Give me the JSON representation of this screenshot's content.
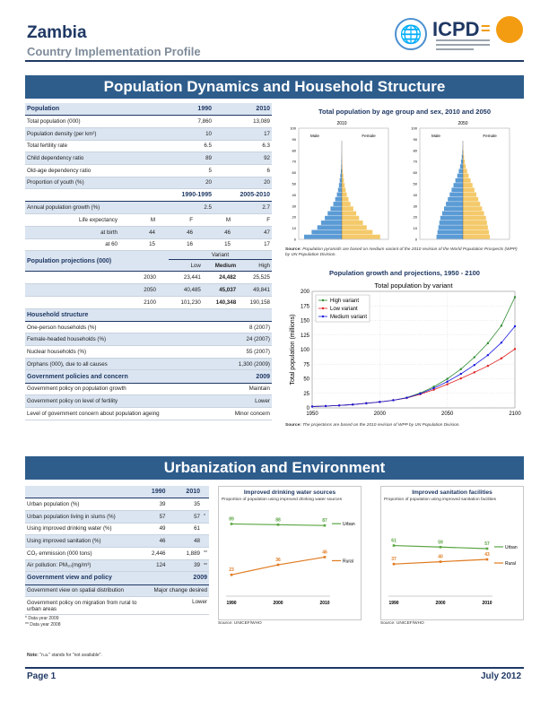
{
  "header": {
    "country": "Zambia",
    "subtitle": "Country Implementation Profile",
    "icpd_logo": "ICPD",
    "logo_eq": "="
  },
  "section1": {
    "title": "Population Dynamics and Household Structure",
    "population": {
      "label": "Population",
      "y1": "1990",
      "y2": "2010",
      "rows": [
        {
          "label": "Total population (000)",
          "v1": "7,860",
          "v2": "13,089"
        },
        {
          "label": "Population density (per km²)",
          "v1": "10",
          "v2": "17"
        },
        {
          "label": "Total fertility rate",
          "v1": "6.5",
          "v2": "6.3"
        },
        {
          "label": "Child dependency ratio",
          "v1": "89",
          "v2": "92"
        },
        {
          "label": "Old-age dependency ratio",
          "v1": "5",
          "v2": "6"
        },
        {
          "label": "Proportion of youth (%)",
          "v1": "20",
          "v2": "20"
        }
      ],
      "period1": "1990-1995",
      "period2": "2005-2010",
      "growth_label": "Annual population growth (%)",
      "growth1": "2.5",
      "growth2": "2.7",
      "le_label": "Life expectancy",
      "le_h": [
        "M",
        "F",
        "M",
        "F"
      ],
      "le_birth_label": "at birth",
      "le_birth": [
        "44",
        "46",
        "46",
        "47"
      ],
      "le_60_label": "at 60",
      "le_60": [
        "15",
        "16",
        "15",
        "17"
      ]
    },
    "projections": {
      "label": "Population projections (000)",
      "variant": "Variant",
      "low": "Low",
      "medium": "Medium",
      "high": "High",
      "rows": [
        {
          "year": "2030",
          "low": "23,441",
          "medium": "24,482",
          "high": "25,525"
        },
        {
          "year": "2050",
          "low": "40,485",
          "medium": "45,037",
          "high": "49,841"
        },
        {
          "year": "2100",
          "low": "101,230",
          "medium": "140,348",
          "high": "190,158"
        }
      ]
    },
    "household": {
      "label": "Household structure",
      "rows": [
        {
          "label": "One-person households (%)",
          "value": "8 (2007)"
        },
        {
          "label": "Female-headed households (%)",
          "value": "24 (2007)"
        },
        {
          "label": "Nuclear households (%)",
          "value": "55 (2007)"
        },
        {
          "label": "Orphans (000), due to all causes",
          "value": "1,300 (2009)"
        }
      ]
    },
    "policies": {
      "label": "Government policies and concern",
      "year": "2009",
      "rows": [
        {
          "label": "Government policy on population growth",
          "value": "Maintain"
        },
        {
          "label": "Government policy on level of fertility",
          "value": "Lower"
        },
        {
          "label": "Level of government concern about population ageing",
          "value": "Minor concern"
        }
      ]
    },
    "pyramid": {
      "title": "Total population by age group and sex, 2010 and 2050",
      "year_left": "2010",
      "year_right": "2050",
      "male": "Male",
      "female": "Female",
      "ticks": [
        "100",
        "90",
        "80",
        "70",
        "60",
        "50",
        "40",
        "30",
        "20",
        "10",
        "0"
      ],
      "source_label": "Source:",
      "source": "Population pyramids are based on medium variant of the 2010 revision of the World Population Prospects (WPP) by UN Population Division."
    },
    "projection_chart": {
      "title": "Population growth and projections, 1950 - 2100",
      "source_label": "Source:",
      "source": "The projections are based on the 2010 revision of WPP by UN Population Division."
    }
  },
  "chart_data": [
    {
      "type": "line",
      "title": "Total population by variant",
      "ylabel": "Total population (millions)",
      "xlim": [
        1950,
        2100
      ],
      "ylim": [
        0,
        200
      ],
      "yticks": [
        0,
        25,
        50,
        75,
        100,
        125,
        150,
        175,
        200
      ],
      "xticks": [
        1950,
        2000,
        2050,
        2100
      ],
      "legend": "top-left",
      "grid": true,
      "series": [
        {
          "name": "High variant",
          "color": "#2e8b2e",
          "x": [
            1950,
            1960,
            1970,
            1980,
            1990,
            2000,
            2010,
            2020,
            2030,
            2040,
            2050,
            2060,
            2070,
            2080,
            2090,
            2100
          ],
          "y": [
            2.4,
            3.1,
            4.2,
            5.7,
            7.9,
            10.2,
            13.1,
            17.6,
            25.5,
            36.4,
            49.8,
            66.5,
            86.9,
            111,
            141,
            190
          ]
        },
        {
          "name": "Low variant",
          "color": "#e02020",
          "x": [
            1950,
            1960,
            1970,
            1980,
            1990,
            2000,
            2010,
            2020,
            2030,
            2040,
            2050,
            2060,
            2070,
            2080,
            2090,
            2100
          ],
          "y": [
            2.4,
            3.1,
            4.2,
            5.7,
            7.9,
            10.2,
            13.1,
            17.0,
            23.4,
            31.2,
            40.5,
            50.5,
            61.0,
            72.0,
            85.0,
            101
          ]
        },
        {
          "name": "Medium variant",
          "color": "#1a1ae0",
          "x": [
            1950,
            1960,
            1970,
            1980,
            1990,
            2000,
            2010,
            2020,
            2030,
            2040,
            2050,
            2060,
            2070,
            2080,
            2090,
            2100
          ],
          "y": [
            2.4,
            3.1,
            4.2,
            5.7,
            7.9,
            10.2,
            13.1,
            17.3,
            24.5,
            33.8,
            45.0,
            58.3,
            73.5,
            90.5,
            112,
            140
          ]
        }
      ]
    },
    {
      "type": "line",
      "title": "Improved drinking water sources",
      "subtitle": "Proportion of population using improved drinking water sources",
      "x": [
        1990,
        2000,
        2010
      ],
      "series": [
        {
          "name": "Urban",
          "color": "#5aa542",
          "values": [
            89,
            88,
            87
          ]
        },
        {
          "name": "Rural",
          "color": "#e07a1f",
          "values": [
            23,
            36,
            46
          ]
        }
      ],
      "source": "Source: UNICEF/WHO"
    },
    {
      "type": "line",
      "title": "Improved sanitation facilities",
      "subtitle": "Proportion of population using improved sanitation facilities",
      "x": [
        1990,
        2000,
        2010
      ],
      "series": [
        {
          "name": "Urban",
          "color": "#5aa542",
          "values": [
            61,
            59,
            57
          ]
        },
        {
          "name": "Rural",
          "color": "#e07a1f",
          "values": [
            37,
            40,
            43
          ]
        }
      ],
      "source": "Source: UNICEF/WHO"
    }
  ],
  "section2": {
    "title": "Urbanization and Environment",
    "y1": "1990",
    "y2": "2010",
    "rows": [
      {
        "label": "Urban population (%)",
        "v1": "39",
        "v2": "35",
        "note": ""
      },
      {
        "label": "Urban population living in slums (%)",
        "v1": "57",
        "v2": "57",
        "note": "*"
      },
      {
        "label": "Using improved drinking water (%)",
        "v1": "49",
        "v2": "61",
        "note": ""
      },
      {
        "label": "Using improved sanitation (%)",
        "v1": "46",
        "v2": "48",
        "note": ""
      },
      {
        "label": "CO₂ emmission (000 tons)",
        "v1": "2,446",
        "v2": "1,889",
        "note": "**"
      },
      {
        "label": "Air pollution: PM₁₀(mg/m³)",
        "v1": "124",
        "v2": "39",
        "note": "**"
      }
    ],
    "gov_label": "Government view and policy",
    "gov_year": "2009",
    "gov_rows": [
      {
        "label": "Government view on spatial distribution",
        "value": "Major change desired"
      },
      {
        "label": "Government policy on migration from rural to urban areas",
        "value": "Lower"
      }
    ],
    "notes": [
      "* Data year 2009",
      "** Data year 2008"
    ],
    "note_label": "Note:",
    "note": "\"n.a.\" stands for \"not available\"."
  },
  "footer": {
    "page": "Page 1",
    "date": "July 2012"
  }
}
